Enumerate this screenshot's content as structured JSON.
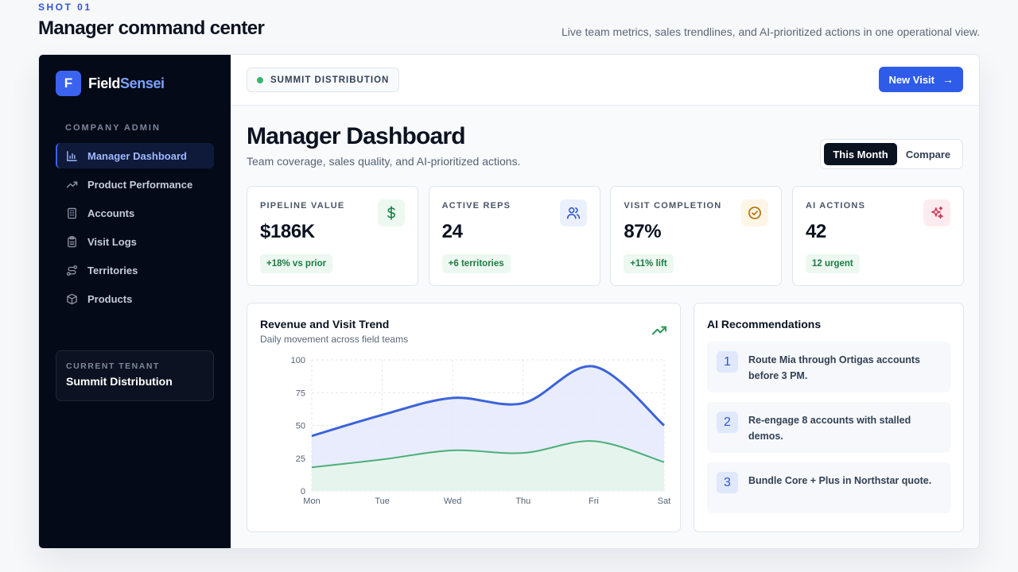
{
  "shot": {
    "label": "SHOT 01",
    "title": "Manager command center",
    "description": "Live team metrics, sales trendlines, and AI-prioritized actions in one operational view."
  },
  "brand": {
    "mark": "F",
    "name_main": "Field",
    "name_accent": "Sensei"
  },
  "sidebar": {
    "section": "COMPANY ADMIN",
    "items": [
      {
        "label": "Manager Dashboard",
        "icon": "bar-chart-icon",
        "active": true
      },
      {
        "label": "Product Performance",
        "icon": "trend-icon",
        "active": false
      },
      {
        "label": "Accounts",
        "icon": "building-icon",
        "active": false
      },
      {
        "label": "Visit Logs",
        "icon": "clipboard-icon",
        "active": false
      },
      {
        "label": "Territories",
        "icon": "route-icon",
        "active": false
      },
      {
        "label": "Products",
        "icon": "box-icon",
        "active": false
      }
    ],
    "tenant_label": "CURRENT TENANT",
    "tenant_name": "Summit Distribution"
  },
  "topbar": {
    "org": "SUMMIT DISTRIBUTION",
    "new_visit": "New Visit"
  },
  "main": {
    "title": "Manager Dashboard",
    "subtitle": "Team coverage, sales quality, and AI-prioritized actions.",
    "toggle": {
      "active": "This Month",
      "inactive": "Compare"
    }
  },
  "kpis": [
    {
      "label": "PIPELINE VALUE",
      "value": "$186K",
      "badge": "+18% vs prior",
      "icon": "dollar-icon",
      "icon_color": "#1d8a4f",
      "icon_bg": "#ecf8f0"
    },
    {
      "label": "ACTIVE REPS",
      "value": "24",
      "badge": "+6 territories",
      "icon": "users-icon",
      "icon_color": "#3556c9",
      "icon_bg": "#eaf0fd"
    },
    {
      "label": "VISIT COMPLETION",
      "value": "87%",
      "badge": "+11% lift",
      "icon": "check-circle-icon",
      "icon_color": "#b4720b",
      "icon_bg": "#fdf5e6"
    },
    {
      "label": "AI ACTIONS",
      "value": "42",
      "badge": "12 urgent",
      "icon": "sparkle-icon",
      "icon_color": "#d43c5b",
      "icon_bg": "#fdecef"
    }
  ],
  "trend": {
    "title": "Revenue and Visit Trend",
    "subtitle": "Daily movement across field teams"
  },
  "chart_data": {
    "type": "area",
    "title": "Revenue and Visit Trend",
    "x": [
      "Mon",
      "Tue",
      "Wed",
      "Thu",
      "Fri",
      "Sat"
    ],
    "ylim": [
      0,
      100
    ],
    "yticks": [
      0,
      25,
      50,
      75,
      100
    ],
    "grid": true,
    "series": [
      {
        "values": [
          42,
          58,
          71,
          67,
          95,
          50
        ],
        "color": "#3b63d9",
        "fill": "#e4e9fb"
      },
      {
        "values": [
          18,
          24,
          31,
          29,
          38,
          22
        ],
        "color": "#4caf7a",
        "fill": "#e6f5ec"
      }
    ]
  },
  "ai": {
    "title": "AI Recommendations",
    "items": [
      {
        "num": "1",
        "text": "Route Mia through Ortigas accounts before 3 PM."
      },
      {
        "num": "2",
        "text": "Re-engage 8 accounts with stalled demos."
      },
      {
        "num": "3",
        "text": "Bundle Core + Plus in Northstar quote."
      }
    ]
  }
}
